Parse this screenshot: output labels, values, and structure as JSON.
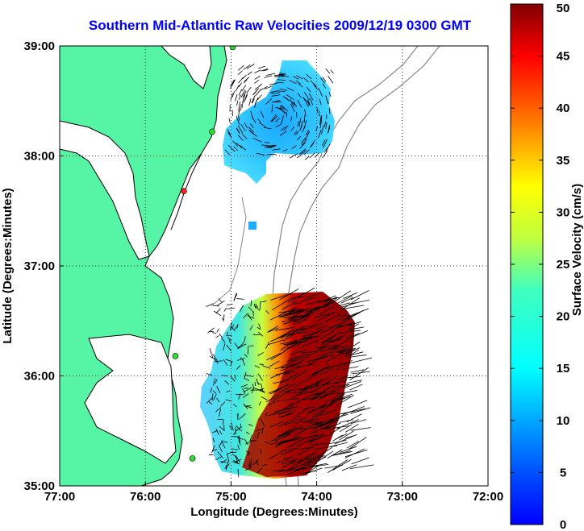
{
  "map": {
    "title": "Southern Mid-Atlantic Raw Velocities 2009/12/19 0300 GMT",
    "title_color": "#0000ff",
    "xlabel": "Longitude (Degrees:Minutes)",
    "ylabel": "Latitude (Degrees:Minutes)",
    "x_ticks": [
      "77:00",
      "76:00",
      "75:00",
      "74:00",
      "73:00",
      "72:00"
    ],
    "y_ticks": [
      "35:00",
      "36:00",
      "37:00",
      "38:00",
      "39:00"
    ],
    "land_color": "#55f5a5",
    "ocean_color": "#ffffff",
    "grid": "dotted",
    "lon_range": [
      -77,
      -72
    ],
    "lat_range": [
      35,
      39
    ]
  },
  "colorbar": {
    "label": "Surface Velocity (cm/s)",
    "ticks": [
      "0",
      "5",
      "10",
      "15",
      "20",
      "25",
      "30",
      "35",
      "40",
      "45",
      "50"
    ],
    "range": [
      0,
      50
    ]
  },
  "stations": [
    {
      "lon": -74.98,
      "lat": 38.99,
      "color": "#33dd33"
    },
    {
      "lon": -75.22,
      "lat": 38.22,
      "color": "#33dd33"
    },
    {
      "lon": -75.55,
      "lat": 37.68,
      "color": "#ff2222"
    },
    {
      "lon": -75.65,
      "lat": 36.18,
      "color": "#33dd33"
    },
    {
      "lon": -75.45,
      "lat": 35.25,
      "color": "#33dd33"
    }
  ]
}
